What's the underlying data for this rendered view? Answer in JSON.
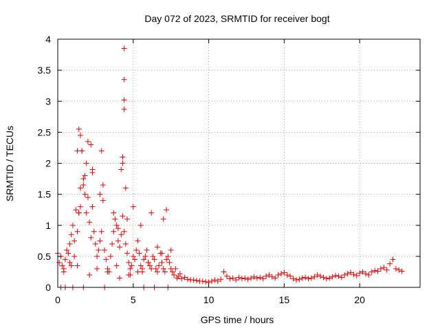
{
  "chart_data": {
    "type": "scatter",
    "title": "Day 072 of 2023, SRMTID for receiver bogt",
    "xlabel": "GPS time / hours",
    "ylabel": "SRMTID / TECUs",
    "xlim": [
      0,
      24
    ],
    "ylim": [
      0,
      4
    ],
    "xticks": [
      0,
      5,
      10,
      15,
      20
    ],
    "xtick_labels": [
      "0",
      "5",
      "10",
      "15",
      "20"
    ],
    "yticks": [
      0,
      0.5,
      1,
      1.5,
      2,
      2.5,
      3,
      3.5,
      4
    ],
    "ytick_labels": [
      "0",
      "0.5",
      "1",
      "1.5",
      "2",
      "2.5",
      "3",
      "3.5",
      "4"
    ],
    "grid": true,
    "marker": "+",
    "marker_color": "#e00000",
    "series": [
      {
        "name": "SRMTID",
        "x": [
          0.0,
          0.1,
          0.2,
          0.3,
          0.4,
          0.5,
          0.6,
          0.7,
          0.8,
          0.9,
          1.0,
          1.1,
          1.2,
          1.3,
          1.4,
          1.5,
          1.6,
          1.7,
          1.8,
          1.9,
          2.0,
          2.1,
          2.2,
          2.3,
          2.4,
          2.5,
          2.6,
          2.7,
          2.8,
          2.9,
          3.0,
          3.1,
          3.2,
          3.3,
          3.4,
          3.5,
          3.6,
          3.7,
          3.8,
          3.9,
          4.0,
          4.1,
          4.2,
          4.3,
          4.4,
          4.5,
          4.6,
          4.7,
          4.8,
          4.9,
          5.0,
          5.1,
          5.2,
          5.3,
          5.4,
          5.5,
          5.6,
          5.7,
          5.8,
          5.9,
          6.0,
          6.1,
          6.2,
          6.3,
          6.4,
          6.5,
          6.6,
          6.7,
          6.8,
          6.9,
          7.0,
          7.1,
          7.2,
          7.3,
          7.4,
          7.5,
          7.6,
          7.7,
          7.8,
          7.9,
          8.0,
          8.2,
          8.4,
          8.6,
          8.8,
          9.0,
          9.2,
          9.4,
          9.6,
          9.8,
          10.0,
          10.2,
          10.4,
          10.6,
          10.8,
          11.0,
          11.2,
          11.4,
          11.6,
          11.8,
          12.0,
          12.2,
          12.4,
          12.6,
          12.8,
          13.0,
          13.2,
          13.4,
          13.6,
          13.8,
          14.0,
          14.2,
          14.4,
          14.6,
          14.8,
          15.0,
          15.2,
          15.4,
          15.6,
          15.8,
          16.0,
          16.2,
          16.4,
          16.6,
          16.8,
          17.0,
          17.2,
          17.4,
          17.6,
          17.8,
          18.0,
          18.2,
          18.4,
          18.6,
          18.8,
          19.0,
          19.2,
          19.4,
          19.6,
          19.8,
          20.0,
          20.2,
          20.4,
          20.6,
          20.8,
          21.0,
          21.2,
          21.4,
          21.6,
          21.8,
          22.0,
          22.2,
          22.4,
          22.6,
          22.8,
          1.3,
          1.4,
          1.5,
          1.6,
          1.7,
          1.8,
          2.2,
          2.3,
          2.9,
          3.0,
          4.3,
          4.4,
          4.4,
          4.4,
          4.4,
          4.3,
          4.2,
          4.5,
          6.2,
          7.0,
          7.2,
          2.0,
          1.9,
          2.3,
          1.5,
          1.4,
          2.8,
          4.6,
          5.0,
          5.5,
          4.0,
          3.7,
          6.6,
          1.1,
          0.9,
          0.8,
          2.6,
          3.3,
          3.9,
          4.8,
          5.3,
          6.0,
          6.9,
          7.5,
          0.2,
          0.5,
          1.0,
          1.7,
          3.1,
          5.7,
          6.4,
          7.3,
          0.4,
          1.3,
          2.1,
          4.1,
          4.7,
          5.6,
          8.1
        ],
        "y": [
          0.55,
          0.4,
          0.5,
          0.35,
          0.3,
          0.45,
          0.6,
          0.55,
          0.7,
          0.85,
          1.0,
          0.75,
          1.25,
          0.9,
          1.2,
          1.6,
          2.2,
          1.75,
          1.5,
          1.2,
          1.45,
          1.05,
          0.8,
          1.3,
          0.9,
          0.7,
          0.5,
          0.6,
          0.75,
          0.9,
          1.4,
          0.6,
          0.45,
          0.3,
          0.25,
          0.5,
          0.7,
          0.9,
          1.1,
          1.0,
          0.75,
          0.65,
          0.85,
          1.15,
          0.9,
          0.7,
          0.55,
          0.4,
          0.3,
          0.35,
          0.5,
          0.45,
          0.6,
          0.75,
          0.55,
          0.35,
          0.25,
          0.45,
          0.5,
          0.6,
          0.4,
          0.35,
          0.3,
          0.5,
          0.45,
          0.3,
          0.25,
          0.35,
          0.55,
          0.4,
          0.3,
          0.25,
          0.45,
          0.5,
          0.4,
          0.3,
          0.25,
          0.2,
          0.3,
          0.15,
          0.18,
          0.14,
          0.16,
          0.13,
          0.12,
          0.12,
          0.11,
          0.1,
          0.1,
          0.09,
          0.08,
          0.1,
          0.12,
          0.1,
          0.13,
          0.25,
          0.18,
          0.14,
          0.15,
          0.12,
          0.16,
          0.14,
          0.15,
          0.13,
          0.15,
          0.17,
          0.15,
          0.16,
          0.14,
          0.18,
          0.2,
          0.17,
          0.15,
          0.2,
          0.22,
          0.24,
          0.2,
          0.18,
          0.14,
          0.12,
          0.13,
          0.15,
          0.16,
          0.14,
          0.15,
          0.17,
          0.2,
          0.18,
          0.16,
          0.14,
          0.15,
          0.17,
          0.19,
          0.18,
          0.16,
          0.2,
          0.22,
          0.24,
          0.21,
          0.19,
          0.23,
          0.25,
          0.22,
          0.2,
          0.25,
          0.27,
          0.26,
          0.3,
          0.32,
          0.28,
          0.38,
          0.45,
          0.3,
          0.28,
          0.26,
          2.2,
          2.55,
          2.45,
          2.2,
          1.65,
          1.8,
          2.3,
          1.85,
          2.2,
          1.65,
          2.1,
          3.85,
          3.35,
          3.02,
          2.87,
          2.0,
          1.9,
          1.6,
          1.2,
          1.1,
          1.25,
          2.35,
          2.0,
          1.9,
          1.3,
          1.2,
          1.5,
          1.1,
          1.3,
          1.0,
          0.95,
          1.2,
          0.65,
          0.5,
          0.35,
          0.4,
          0.3,
          0.25,
          0.35,
          0.2,
          0.25,
          0.4,
          0.55,
          0.6,
          0.0,
          0.0,
          0.0,
          0.0,
          0.0,
          0.0,
          0.0,
          0.0,
          0.25,
          0.35,
          0.2,
          0.15,
          0.2,
          0.3,
          0.22
        ]
      }
    ]
  }
}
